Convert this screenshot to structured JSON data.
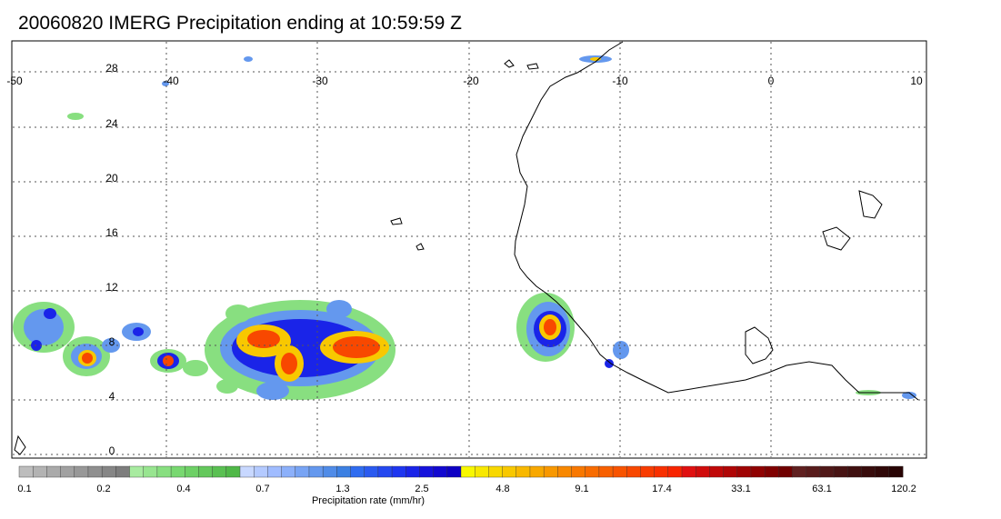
{
  "title": "20060820 IMERG Precipitation ending at 10:59:59 Z",
  "map": {
    "lon_range": [
      -50,
      10
    ],
    "lat_range": [
      -1,
      30
    ],
    "lon_labels": [
      "-50",
      "-40",
      "-30",
      "-20",
      "-10",
      "0",
      "10"
    ],
    "lat_labels": [
      "0",
      "4",
      "8",
      "12",
      "16",
      "20",
      "24",
      "28"
    ]
  },
  "colorbar": {
    "title": "Precipitation rate (mm/hr)",
    "labels": [
      "0.1",
      "0.2",
      "0.4",
      "0.7",
      "1.3",
      "2.5",
      "4.8",
      "9.1",
      "17.4",
      "33.1",
      "63.1",
      "120.2"
    ],
    "colors": [
      "#bdbdbd",
      "#b3b3b3",
      "#aaaaaa",
      "#a1a1a1",
      "#989898",
      "#8f8f8f",
      "#868686",
      "#7d7d7d",
      "#a8eba0",
      "#98e590",
      "#88df80",
      "#78d870",
      "#6ed066",
      "#64c85c",
      "#5ac052",
      "#50b848",
      "#c8d8ff",
      "#b4caff",
      "#a0bcff",
      "#8cb0fa",
      "#78a4f4",
      "#6498ee",
      "#508ce8",
      "#3c80e2",
      "#2f6cf0",
      "#2a5af0",
      "#2448f0",
      "#1e36f0",
      "#1a24e8",
      "#1612dc",
      "#1208d0",
      "#0e00c4",
      "#f8f800",
      "#f8e800",
      "#f8d800",
      "#f8c800",
      "#f8b800",
      "#f8a800",
      "#f89800",
      "#f88800",
      "#f87800",
      "#f86c00",
      "#f86000",
      "#f85400",
      "#f84800",
      "#f83c00",
      "#f83000",
      "#f82400",
      "#e01010",
      "#d00c0c",
      "#c00808",
      "#b00606",
      "#a00404",
      "#900202",
      "#800000",
      "#700000",
      "#602020",
      "#581c1c",
      "#501818",
      "#481414",
      "#401010",
      "#380c0c",
      "#300808",
      "#280404"
    ],
    "colors_per_label": 8
  },
  "storm_colors": {
    "light": "#88df80",
    "moderate": "#6498ee",
    "heavy": "#1a24e8",
    "intense": "#f8c800",
    "severe": "#f84800"
  }
}
